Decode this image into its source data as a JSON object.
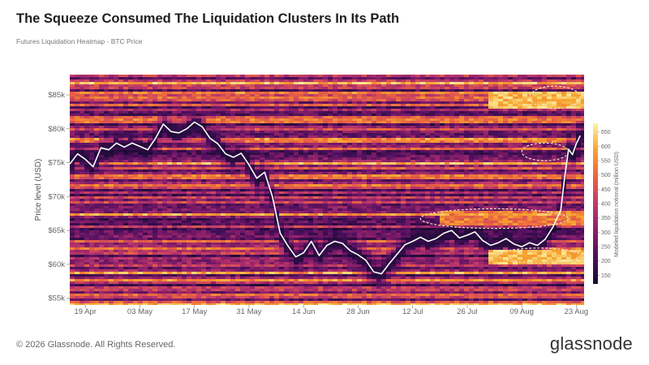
{
  "header": {
    "title": "The Squeeze Consumed The Liquidation Clusters In Its Path",
    "subtitle": "Futures Liquidation Heatmap - BTC Price"
  },
  "footer": {
    "copyright": "© 2026 Glassnode. All Rights Reserved.",
    "brand": "glassnode"
  },
  "chart_data": {
    "type": "heatmap",
    "title": "The Squeeze Consumed The Liquidation Clusters In Its Path",
    "subtitle": "Futures Liquidation Heatmap - BTC Price",
    "ylabel": "Price level (USD)",
    "ylim": [
      54000,
      88000
    ],
    "y_ticks": [
      {
        "value": 55000,
        "label": "$55k"
      },
      {
        "value": 60000,
        "label": "$60k"
      },
      {
        "value": 65000,
        "label": "$65k"
      },
      {
        "value": 70000,
        "label": "$70k"
      },
      {
        "value": 75000,
        "label": "$75k"
      },
      {
        "value": 80000,
        "label": "$80k"
      },
      {
        "value": 85000,
        "label": "$85k"
      }
    ],
    "x_range": [
      "2025-04-15",
      "2025-08-25"
    ],
    "x_ticks": [
      {
        "date": "2025-04-19",
        "label": "19 Apr"
      },
      {
        "date": "2025-05-03",
        "label": "03 May"
      },
      {
        "date": "2025-05-17",
        "label": "17 May"
      },
      {
        "date": "2025-05-31",
        "label": "31 May"
      },
      {
        "date": "2025-06-14",
        "label": "14 Jun"
      },
      {
        "date": "2025-06-28",
        "label": "28 Jun"
      },
      {
        "date": "2025-07-12",
        "label": "12 Jul"
      },
      {
        "date": "2025-07-26",
        "label": "26 Jul"
      },
      {
        "date": "2025-08-09",
        "label": "09 Aug"
      },
      {
        "date": "2025-08-23",
        "label": "23 Aug"
      }
    ],
    "colorbar": {
      "label": "Modeled liquidation notional (million USD)",
      "range": [
        120,
        680
      ],
      "ticks": [
        150,
        200,
        250,
        300,
        350,
        400,
        450,
        500,
        550,
        600,
        650
      ],
      "colors": [
        "#1a0b33",
        "#4d0f5e",
        "#8a1f6a",
        "#c03a6a",
        "#ea6440",
        "#f7a430",
        "#fcf3a5"
      ]
    },
    "colors": {
      "line": "#ffffff",
      "highlight": "#f3e1c6"
    },
    "series": [
      {
        "type": "line",
        "points": [
          {
            "date": "2025-04-15",
            "price": 74800
          },
          {
            "date": "2025-04-17",
            "price": 76300
          },
          {
            "date": "2025-04-19",
            "price": 75500
          },
          {
            "date": "2025-04-21",
            "price": 74400
          },
          {
            "date": "2025-04-23",
            "price": 77200
          },
          {
            "date": "2025-04-25",
            "price": 76900
          },
          {
            "date": "2025-04-27",
            "price": 77900
          },
          {
            "date": "2025-04-29",
            "price": 77300
          },
          {
            "date": "2025-05-01",
            "price": 77900
          },
          {
            "date": "2025-05-03",
            "price": 77400
          },
          {
            "date": "2025-05-05",
            "price": 76900
          },
          {
            "date": "2025-05-07",
            "price": 78600
          },
          {
            "date": "2025-05-09",
            "price": 80700
          },
          {
            "date": "2025-05-11",
            "price": 79600
          },
          {
            "date": "2025-05-13",
            "price": 79400
          },
          {
            "date": "2025-05-15",
            "price": 80000
          },
          {
            "date": "2025-05-17",
            "price": 81000
          },
          {
            "date": "2025-05-19",
            "price": 80300
          },
          {
            "date": "2025-05-21",
            "price": 78600
          },
          {
            "date": "2025-05-23",
            "price": 77800
          },
          {
            "date": "2025-05-25",
            "price": 76300
          },
          {
            "date": "2025-05-27",
            "price": 75800
          },
          {
            "date": "2025-05-29",
            "price": 76400
          },
          {
            "date": "2025-05-31",
            "price": 74700
          },
          {
            "date": "2025-06-02",
            "price": 72700
          },
          {
            "date": "2025-06-04",
            "price": 73600
          },
          {
            "date": "2025-06-06",
            "price": 70000
          },
          {
            "date": "2025-06-08",
            "price": 64600
          },
          {
            "date": "2025-06-10",
            "price": 62700
          },
          {
            "date": "2025-06-12",
            "price": 61100
          },
          {
            "date": "2025-06-14",
            "price": 61700
          },
          {
            "date": "2025-06-16",
            "price": 63400
          },
          {
            "date": "2025-06-18",
            "price": 61300
          },
          {
            "date": "2025-06-20",
            "price": 62800
          },
          {
            "date": "2025-06-22",
            "price": 63400
          },
          {
            "date": "2025-06-24",
            "price": 63100
          },
          {
            "date": "2025-06-26",
            "price": 62000
          },
          {
            "date": "2025-06-28",
            "price": 61400
          },
          {
            "date": "2025-06-30",
            "price": 60600
          },
          {
            "date": "2025-07-02",
            "price": 58900
          },
          {
            "date": "2025-07-04",
            "price": 58600
          },
          {
            "date": "2025-07-06",
            "price": 60100
          },
          {
            "date": "2025-07-08",
            "price": 61500
          },
          {
            "date": "2025-07-10",
            "price": 62900
          },
          {
            "date": "2025-07-12",
            "price": 63400
          },
          {
            "date": "2025-07-14",
            "price": 64000
          },
          {
            "date": "2025-07-16",
            "price": 63400
          },
          {
            "date": "2025-07-18",
            "price": 63800
          },
          {
            "date": "2025-07-20",
            "price": 64600
          },
          {
            "date": "2025-07-22",
            "price": 65000
          },
          {
            "date": "2025-07-24",
            "price": 63900
          },
          {
            "date": "2025-07-26",
            "price": 64300
          },
          {
            "date": "2025-07-28",
            "price": 64800
          },
          {
            "date": "2025-07-30",
            "price": 63500
          },
          {
            "date": "2025-08-01",
            "price": 62800
          },
          {
            "date": "2025-08-03",
            "price": 63200
          },
          {
            "date": "2025-08-05",
            "price": 63800
          },
          {
            "date": "2025-08-07",
            "price": 63000
          },
          {
            "date": "2025-08-09",
            "price": 62600
          },
          {
            "date": "2025-08-11",
            "price": 63200
          },
          {
            "date": "2025-08-13",
            "price": 62800
          },
          {
            "date": "2025-08-15",
            "price": 63700
          },
          {
            "date": "2025-08-17",
            "price": 65500
          },
          {
            "date": "2025-08-19",
            "price": 68000
          },
          {
            "date": "2025-08-20",
            "price": 72800
          },
          {
            "date": "2025-08-21",
            "price": 77000
          },
          {
            "date": "2025-08-22",
            "price": 76200
          },
          {
            "date": "2025-08-23",
            "price": 77800
          },
          {
            "date": "2025-08-24",
            "price": 79000
          }
        ]
      }
    ],
    "highlighted_clusters": [
      {
        "from": "2025-08-11",
        "to": "2025-08-24",
        "price_from": 83000,
        "price_to": 86300
      },
      {
        "from": "2025-08-09",
        "to": "2025-08-21",
        "price_from": 75300,
        "price_to": 77900
      },
      {
        "from": "2025-07-14",
        "to": "2025-08-21",
        "price_from": 65300,
        "price_to": 68200
      },
      {
        "from": "2025-08-03",
        "to": "2025-08-24",
        "price_from": 60200,
        "price_to": 62400
      }
    ]
  }
}
